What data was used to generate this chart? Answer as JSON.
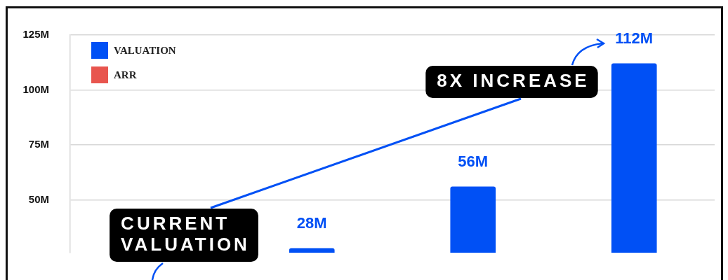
{
  "chart_data": {
    "type": "bar",
    "categories": [
      null,
      null,
      null,
      null
    ],
    "series": [
      {
        "name": "VALUATION",
        "color": "#0050f5",
        "values": [
          null,
          28,
          56,
          112
        ],
        "value_labels": [
          null,
          "28M",
          "56M",
          "112M"
        ]
      },
      {
        "name": "ARR",
        "color": "#e8554e",
        "values": [
          null,
          null,
          null,
          null
        ]
      }
    ],
    "ylim": [
      26,
      125
    ],
    "yticks": [
      {
        "value": 50,
        "label": "50M"
      },
      {
        "value": 75,
        "label": "75M"
      },
      {
        "value": 100,
        "label": "100M"
      },
      {
        "value": 125,
        "label": "125M"
      }
    ],
    "grid": "y",
    "legend": "top left",
    "annotations": [
      "CURRENT VALUATION",
      "8X INCREASE"
    ]
  }
}
